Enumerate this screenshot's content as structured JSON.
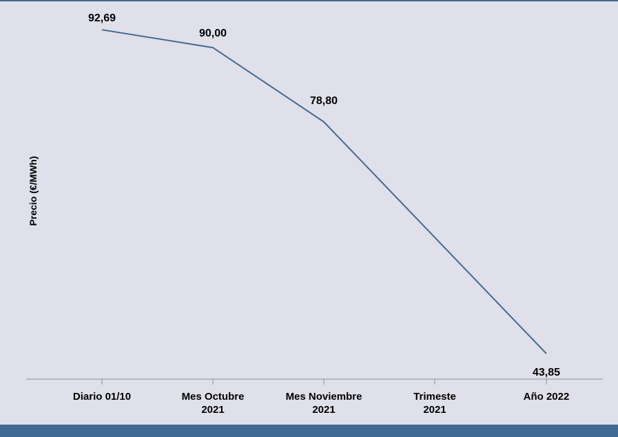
{
  "chart_data": {
    "type": "line",
    "categories": [
      [
        "Diario 01/10"
      ],
      [
        "Mes Octubre",
        "2021"
      ],
      [
        "Mes Noviembre",
        "2021"
      ],
      [
        "Trimeste",
        "2021"
      ],
      [
        "Año 2022"
      ]
    ],
    "series": [
      {
        "values": [
          92.69,
          90.0,
          78.8,
          null,
          43.85
        ]
      }
    ],
    "data_labels": [
      "92,69",
      "90,00",
      "78,80",
      "",
      "43,85"
    ],
    "xlabel": "",
    "ylabel": "Precio (€/MWh)",
    "ylim": [
      40,
      95
    ],
    "grid": false,
    "legend": "none",
    "colors": {
      "line": "#43698f",
      "axis": "#8e8e99",
      "background": "#dfe0ea",
      "band": "#3f6a91"
    }
  }
}
